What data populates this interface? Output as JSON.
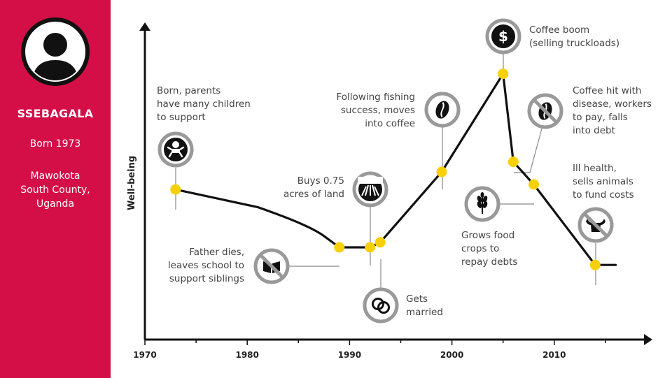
{
  "profile": {
    "name": "SSEBAGALA",
    "born": "Born 1973",
    "location_lines": [
      "Mawokota",
      "South County,",
      "Uganda"
    ],
    "icon": "person-icon"
  },
  "colors": {
    "sidebar": "#d40f47",
    "marker": "#f7d008",
    "icon_ring": "#9a9a9a",
    "line": "#111111"
  },
  "chart_data": {
    "type": "line",
    "title": "",
    "xlabel": "",
    "ylabel": "Well-being",
    "xlim": [
      1970,
      2020
    ],
    "ylim": [
      0,
      100
    ],
    "xticks": [
      "1970",
      "1980",
      "1990",
      "2000",
      "2010"
    ],
    "grid": false,
    "series": [
      {
        "points": [
          {
            "x": 1973,
            "y": 49
          },
          {
            "x": 1981,
            "y": 42
          },
          {
            "x": 1986,
            "y": 35
          },
          {
            "x": 1989,
            "y": 26
          },
          {
            "x": 1992,
            "y": 26
          },
          {
            "x": 1993,
            "y": 28
          },
          {
            "x": 1999,
            "y": 56
          },
          {
            "x": 2005,
            "y": 95
          },
          {
            "x": 2006,
            "y": 60
          },
          {
            "x": 2008,
            "y": 51
          },
          {
            "x": 2014,
            "y": 19
          },
          {
            "x": 2016,
            "y": 19
          }
        ]
      }
    ],
    "markers": [
      {
        "x": 1973,
        "y": 49
      },
      {
        "x": 1989,
        "y": 26
      },
      {
        "x": 1992,
        "y": 26
      },
      {
        "x": 1993,
        "y": 28
      },
      {
        "x": 1999,
        "y": 56
      },
      {
        "x": 2005,
        "y": 95
      },
      {
        "x": 2006,
        "y": 60
      },
      {
        "x": 2008,
        "y": 51
      },
      {
        "x": 2014,
        "y": 19
      }
    ],
    "events": [
      {
        "lines": [
          "Born, parents",
          "have many children",
          "to support"
        ],
        "icon": "baby-icon"
      },
      {
        "lines": [
          "Father dies,",
          "leaves school to",
          "support siblings"
        ],
        "icon": "no-book-icon"
      },
      {
        "lines": [
          "Buys 0.75",
          "acres of land"
        ],
        "icon": "land-field-icon"
      },
      {
        "lines": [
          "Gets",
          "married"
        ],
        "icon": "rings-icon"
      },
      {
        "lines": [
          "Following fishing",
          "success, moves",
          "into coffee"
        ],
        "icon": "coffee-bean-icon"
      },
      {
        "lines": [
          "Coffee boom",
          "(selling truckloads)"
        ],
        "icon": "dollar-icon"
      },
      {
        "lines": [
          "Coffee hit with",
          "disease, workers",
          "to pay, falls",
          "into debt"
        ],
        "icon": "no-coffee-icon"
      },
      {
        "lines": [
          "Grows food",
          "crops to",
          "repay debts"
        ],
        "icon": "wheat-icon"
      },
      {
        "lines": [
          "Ill health,",
          "sells animals",
          "to fund costs"
        ],
        "icon": "no-cow-icon"
      }
    ]
  }
}
